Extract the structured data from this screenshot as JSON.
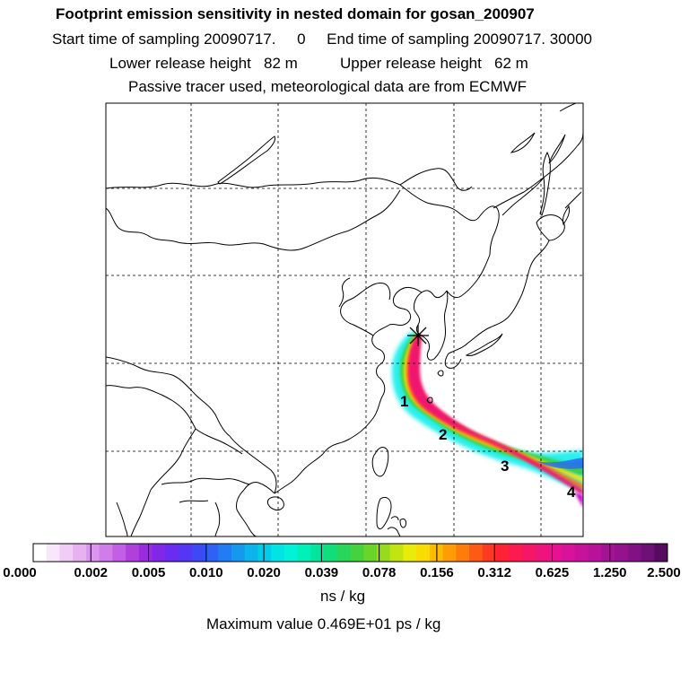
{
  "title": "Footprint emission sensitivity in nested domain for gosan_200907",
  "line_sampling": "Start time of sampling 20090717.     0     End time of sampling 20090717. 30000",
  "line_release": "Lower release height   82 m          Upper release height   62 m",
  "line_tracer": "Passive tracer used, meteorological data are from ECMWF",
  "day_labels": [
    "1",
    "2",
    "3",
    "4"
  ],
  "colorbar": {
    "tick_labels": [
      "0.000",
      "0.002",
      "0.005",
      "0.010",
      "0.020",
      "0.039",
      "0.078",
      "0.156",
      "0.312",
      "0.625",
      "1.250",
      "2.500"
    ],
    "colors": [
      "#ffffff",
      "#f8e6fb",
      "#f0ccf6",
      "#e7b2f2",
      "#dc96ee",
      "#d07ce9",
      "#c25fe4",
      "#b040dc",
      "#9a2bde",
      "#8128e8",
      "#6a2cf0",
      "#5436f6",
      "#3e48f5",
      "#2f62f4",
      "#227cf2",
      "#1698ef",
      "#0cb3ec",
      "#04cdea",
      "#00e4e6",
      "#00f2d8",
      "#00f0bc",
      "#00e69c",
      "#10de7a",
      "#28d65c",
      "#46d23e",
      "#6ad42a",
      "#96dc1c",
      "#c2e410",
      "#e8ec08",
      "#f8dc04",
      "#fcbc04",
      "#fe9c06",
      "#fe7c0c",
      "#fe5a16",
      "#fe3a24",
      "#fe2234",
      "#fc1a4e",
      "#f61666",
      "#ee147e",
      "#e61292",
      "#d8129a",
      "#c8129c",
      "#b8129a",
      "#a61296",
      "#94128e",
      "#821284",
      "#6e1076",
      "#560a60"
    ],
    "unit": "ns / kg"
  },
  "maximum_value": "Maximum value  0.469E+01 ps / kg",
  "release_marker": "star-icon"
}
